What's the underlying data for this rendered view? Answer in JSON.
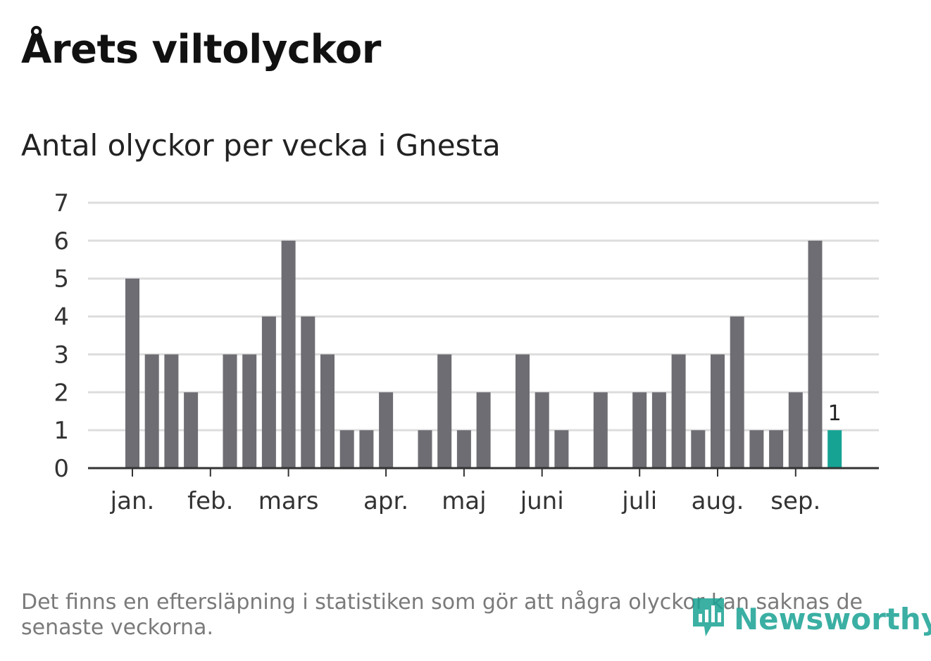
{
  "title": "Årets viltolyckor",
  "subtitle": "Antal olyckor per vecka i Gnesta",
  "footnote": "Det finns en eftersläpning i statistiken som gör att några olyckor kan saknas de senaste veckorna.",
  "brand": {
    "name": "Newsworthy",
    "icon": "newsworthy-logo-icon",
    "color": "#19a293"
  },
  "chart_data": {
    "type": "bar",
    "x": [
      1,
      2,
      3,
      4,
      5,
      6,
      7,
      8,
      9,
      10,
      11,
      12,
      13,
      14,
      15,
      16,
      17,
      18,
      19,
      20,
      21,
      22,
      23,
      24,
      25,
      26,
      27,
      28,
      29,
      30,
      31,
      32,
      33,
      34,
      35,
      36,
      37
    ],
    "values": [
      5,
      3,
      3,
      2,
      0,
      3,
      3,
      4,
      6,
      4,
      3,
      1,
      1,
      2,
      0,
      1,
      3,
      1,
      2,
      0,
      3,
      2,
      1,
      0,
      2,
      0,
      2,
      2,
      3,
      1,
      3,
      4,
      1,
      1,
      2,
      6,
      1
    ],
    "highlight_index": 36,
    "highlight_label": "1",
    "bar_color": "#6e6d73",
    "highlight_color": "#16a394",
    "ylim": [
      0,
      7
    ],
    "yticks": [
      "0",
      "1",
      "2",
      "3",
      "4",
      "5",
      "6",
      "7"
    ],
    "xticks": [
      {
        "label": "jan.",
        "week": 1
      },
      {
        "label": "feb.",
        "week": 5
      },
      {
        "label": "mars",
        "week": 9
      },
      {
        "label": "apr.",
        "week": 14
      },
      {
        "label": "maj",
        "week": 18
      },
      {
        "label": "juni",
        "week": 22
      },
      {
        "label": "juli",
        "week": 27
      },
      {
        "label": "aug.",
        "week": 31
      },
      {
        "label": "sep.",
        "week": 35
      }
    ],
    "grid": true,
    "xlabel": "",
    "ylabel": ""
  }
}
